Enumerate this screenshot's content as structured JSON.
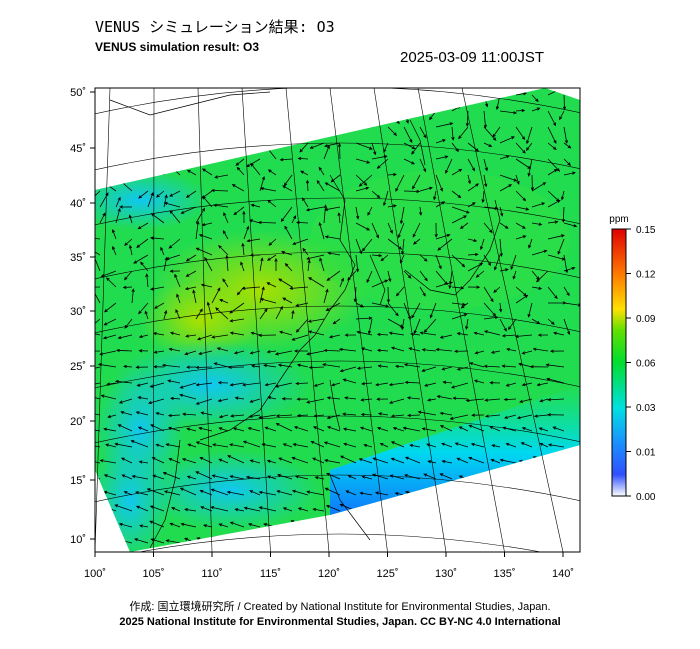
{
  "header": {
    "title": "VENUS シミュレーション結果: O3",
    "subtitle": "VENUS simulation result: O3",
    "timestamp": "2025-03-09 11:00JST"
  },
  "map": {
    "lon_labels": [
      "100˚",
      "105˚",
      "110˚",
      "115˚",
      "120˚",
      "125˚",
      "130˚",
      "135˚",
      "140˚"
    ],
    "lat_labels": [
      "50˚",
      "45˚",
      "40˚",
      "35˚",
      "30˚",
      "25˚",
      "20˚",
      "15˚",
      "10˚"
    ]
  },
  "colorbar": {
    "unit": "ppm",
    "labels": [
      "0.15",
      "0.12",
      "0.09",
      "0.06",
      "0.03",
      "0.01",
      "0.00"
    ]
  },
  "footer": {
    "credit": "作成: 国立環境研究所 / Created by National Institute for Environmental Studies, Japan.",
    "copyright": "2025 National Institute for Environmental Studies, Japan. CC BY-NC 4.0 International"
  }
}
